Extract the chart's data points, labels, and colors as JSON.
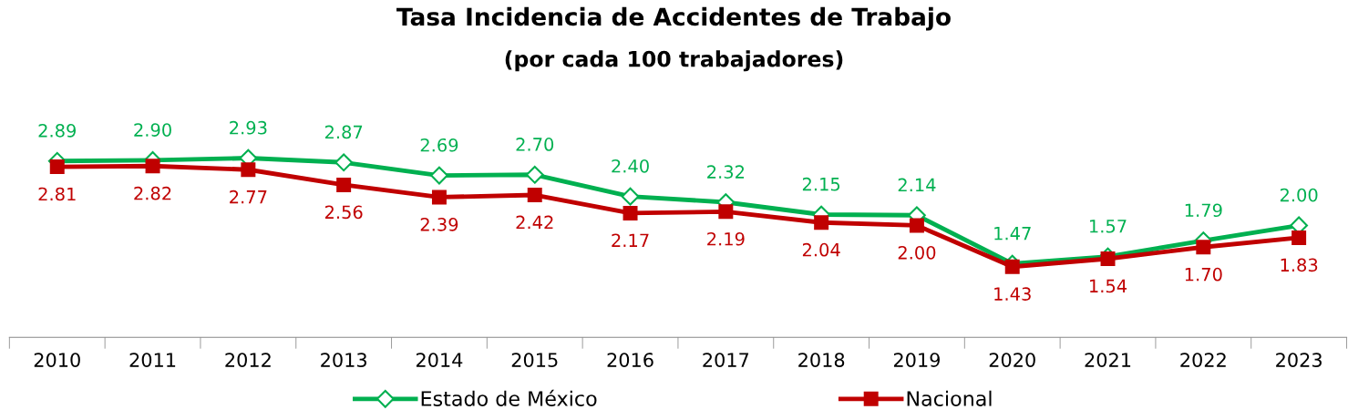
{
  "chart_data": {
    "type": "line",
    "title": "Tasa Incidencia de Accidentes de Trabajo",
    "subtitle": "(por cada 100 trabajadores)",
    "categories": [
      "2010",
      "2011",
      "2012",
      "2013",
      "2014",
      "2015",
      "2016",
      "2017",
      "2018",
      "2019",
      "2020",
      "2021",
      "2022",
      "2023"
    ],
    "series": [
      {
        "name": "Estado de México",
        "color": "#00b050",
        "marker": "diamond",
        "values": [
          2.89,
          2.9,
          2.93,
          2.87,
          2.69,
          2.7,
          2.4,
          2.32,
          2.15,
          2.14,
          1.47,
          1.57,
          1.79,
          2.0
        ],
        "value_labels": [
          "2.89",
          "2.90",
          "2.93",
          "2.87",
          "2.69",
          "2.70",
          "2.40",
          "2.32",
          "2.15",
          "2.14",
          "1.47",
          "1.57",
          "1.79",
          "2.00"
        ]
      },
      {
        "name": "Nacional",
        "color": "#c00000",
        "marker": "square",
        "values": [
          2.81,
          2.82,
          2.77,
          2.56,
          2.39,
          2.42,
          2.17,
          2.19,
          2.04,
          2.0,
          1.43,
          1.54,
          1.7,
          1.83
        ],
        "value_labels": [
          "2.81",
          "2.82",
          "2.77",
          "2.56",
          "2.39",
          "2.42",
          "2.17",
          "2.19",
          "2.04",
          "2.00",
          "1.43",
          "1.54",
          "1.70",
          "1.83"
        ]
      }
    ],
    "grid": false,
    "legend": "bottom",
    "tick_labels": "x"
  }
}
